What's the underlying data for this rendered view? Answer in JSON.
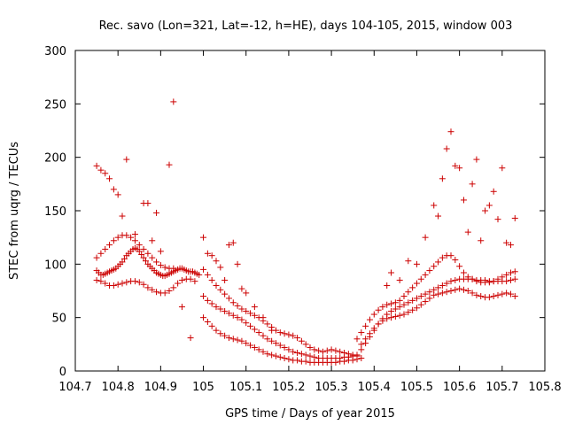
{
  "chart_data": {
    "type": "scatter",
    "title": "Rec. savo (Lon=321, Lat=-12, h=HE), days 104-105, 2015, window 003",
    "xlabel": "GPS time / Days of year 2015",
    "ylabel": "STEC from uqrg / TECUs",
    "xlim": [
      104.7,
      105.8
    ],
    "ylim": [
      0,
      300
    ],
    "x_ticks": [
      104.7,
      104.8,
      104.9,
      105.0,
      105.1,
      105.2,
      105.3,
      105.4,
      105.5,
      105.6,
      105.7,
      105.8
    ],
    "x_tick_labels": [
      "104.7",
      "104.8",
      "104.9",
      "105",
      "105.1",
      "105.2",
      "105.3",
      "105.4",
      "105.5",
      "105.6",
      "105.7",
      "105.8"
    ],
    "y_ticks": [
      0,
      50,
      100,
      150,
      200,
      250,
      300
    ],
    "y_tick_labels": [
      "0",
      "50",
      "100",
      "150",
      "200",
      "250",
      "300"
    ],
    "grid": false,
    "marker": "+",
    "marker_color": "#cc0000",
    "series": [
      {
        "x": [
          104.75,
          104.755,
          104.76,
          104.765,
          104.77,
          104.775,
          104.78,
          104.785,
          104.79,
          104.795,
          104.8,
          104.805,
          104.81,
          104.815,
          104.82,
          104.825,
          104.83,
          104.835,
          104.84,
          104.845,
          104.85,
          104.855,
          104.86,
          104.865,
          104.87,
          104.875,
          104.88,
          104.885,
          104.89,
          104.895,
          104.9,
          104.905,
          104.91,
          104.915,
          104.92,
          104.925,
          104.93,
          104.935,
          104.94,
          104.945,
          104.95,
          104.955,
          104.96,
          104.965,
          104.97,
          104.975,
          104.98,
          104.985,
          104.99
        ],
        "y": [
          94,
          92,
          90,
          90,
          91,
          92,
          93,
          94,
          95,
          96,
          98,
          100,
          102,
          105,
          108,
          110,
          112,
          114,
          115,
          114,
          112,
          109,
          106,
          103,
          100,
          98,
          96,
          94,
          92,
          91,
          90,
          89,
          89,
          90,
          91,
          92,
          93,
          94,
          95,
          96,
          96,
          95,
          94,
          93,
          93,
          93,
          92,
          91,
          90
        ]
      },
      {
        "x": [
          104.75,
          104.76,
          104.77,
          104.78,
          104.79,
          104.8,
          104.81,
          104.82,
          104.83,
          104.84,
          104.85,
          104.86,
          104.87,
          104.88,
          104.89,
          104.9,
          104.91,
          104.92,
          104.93,
          104.94,
          104.95,
          104.96,
          104.97,
          104.98
        ],
        "y": [
          85,
          84,
          82,
          80,
          80,
          81,
          82,
          83,
          84,
          84,
          83,
          81,
          78,
          76,
          74,
          73,
          73,
          75,
          78,
          82,
          85,
          86,
          86,
          84
        ]
      },
      {
        "x": [
          104.75,
          104.76,
          104.77,
          104.78,
          104.79,
          104.8,
          104.81,
          104.82,
          104.83,
          104.84,
          104.85,
          104.86,
          104.87,
          104.88,
          104.89,
          104.9,
          104.91,
          104.92,
          104.93
        ],
        "y": [
          106,
          110,
          114,
          118,
          122,
          125,
          127,
          127,
          125,
          122,
          118,
          114,
          110,
          106,
          102,
          99,
          97,
          96,
          96
        ]
      },
      {
        "x": [
          104.75,
          104.76,
          104.77,
          104.78,
          104.79,
          104.8,
          104.81,
          104.82,
          104.84,
          104.86,
          104.87,
          104.88,
          104.89,
          104.9,
          104.92,
          104.93,
          104.95,
          104.97
        ],
        "y": [
          192,
          188,
          185,
          180,
          170,
          165,
          145,
          198,
          128,
          157,
          157,
          122,
          148,
          112,
          193,
          252,
          60,
          31
        ]
      },
      {
        "x": [
          105.0,
          105.01,
          105.02,
          105.03,
          105.04,
          105.05,
          105.06,
          105.07,
          105.08,
          105.09,
          105.1,
          105.11,
          105.12,
          105.13,
          105.14,
          105.15,
          105.16,
          105.17,
          105.18,
          105.19,
          105.2,
          105.21,
          105.22,
          105.23,
          105.24,
          105.25,
          105.26,
          105.27,
          105.28,
          105.29,
          105.3,
          105.31,
          105.32,
          105.33,
          105.34,
          105.35,
          105.36
        ],
        "y": [
          95,
          90,
          85,
          80,
          76,
          72,
          68,
          64,
          61,
          58,
          56,
          54,
          52,
          50,
          47,
          44,
          41,
          38,
          36,
          35,
          34,
          33,
          31,
          28,
          25,
          22,
          20,
          19,
          18,
          19,
          20,
          19,
          18,
          17,
          16,
          15,
          14
        ]
      },
      {
        "x": [
          105.0,
          105.01,
          105.02,
          105.03,
          105.04,
          105.05,
          105.06,
          105.07,
          105.08,
          105.09,
          105.1,
          105.11,
          105.12,
          105.13,
          105.14,
          105.15,
          105.16,
          105.17,
          105.18,
          105.19,
          105.2,
          105.21,
          105.22,
          105.23,
          105.24,
          105.25,
          105.26,
          105.27,
          105.28,
          105.29,
          105.3,
          105.31,
          105.32,
          105.33,
          105.34,
          105.35,
          105.36,
          105.37
        ],
        "y": [
          50,
          46,
          42,
          38,
          35,
          33,
          31,
          30,
          29,
          28,
          26,
          24,
          22,
          20,
          18,
          16,
          15,
          14,
          13,
          12,
          11,
          10,
          10,
          9,
          9,
          8,
          8,
          8,
          8,
          8,
          8,
          8,
          9,
          9,
          10,
          10,
          11,
          12
        ]
      },
      {
        "x": [
          105.0,
          105.01,
          105.02,
          105.03,
          105.04,
          105.05,
          105.06,
          105.07,
          105.08,
          105.09,
          105.1,
          105.11,
          105.12,
          105.13,
          105.14,
          105.15,
          105.16,
          105.17,
          105.18,
          105.19,
          105.2,
          105.21,
          105.22,
          105.23,
          105.24,
          105.25,
          105.26,
          105.27,
          105.28,
          105.29,
          105.3,
          105.31,
          105.32,
          105.33,
          105.34,
          105.35
        ],
        "y": [
          70,
          66,
          63,
          60,
          58,
          56,
          54,
          52,
          50,
          48,
          45,
          42,
          39,
          36,
          33,
          30,
          28,
          26,
          24,
          22,
          20,
          18,
          17,
          16,
          15,
          14,
          13,
          12,
          12,
          12,
          12,
          12,
          12,
          13,
          13,
          14
        ]
      },
      {
        "x": [
          105.0,
          105.01,
          105.02,
          105.03,
          105.04,
          105.05,
          105.06,
          105.07,
          105.08,
          105.09,
          105.1,
          105.12,
          105.14,
          105.16
        ],
        "y": [
          125,
          110,
          108,
          103,
          97,
          85,
          118,
          120,
          100,
          77,
          73,
          60,
          50,
          38
        ]
      },
      {
        "x": [
          105.36,
          105.37,
          105.38,
          105.39,
          105.4,
          105.41,
          105.42,
          105.43,
          105.44,
          105.45,
          105.46,
          105.47,
          105.48,
          105.49,
          105.5,
          105.51,
          105.52,
          105.53,
          105.54,
          105.55,
          105.56,
          105.57,
          105.58,
          105.59,
          105.6,
          105.61,
          105.62,
          105.63,
          105.64,
          105.65,
          105.66,
          105.67,
          105.68,
          105.69,
          105.7,
          105.71,
          105.72,
          105.73
        ],
        "y": [
          15,
          20,
          26,
          32,
          38,
          44,
          49,
          53,
          56,
          58,
          60,
          62,
          64,
          66,
          68,
          70,
          72,
          74,
          76,
          78,
          80,
          82,
          84,
          85,
          86,
          86,
          86,
          86,
          85,
          85,
          85,
          84,
          84,
          84,
          84,
          84,
          85,
          86
        ]
      },
      {
        "x": [
          105.36,
          105.37,
          105.38,
          105.39,
          105.4,
          105.41,
          105.42,
          105.43,
          105.44,
          105.45,
          105.46,
          105.47,
          105.48,
          105.49,
          105.5,
          105.51,
          105.52,
          105.53,
          105.54,
          105.55,
          105.56,
          105.57,
          105.58,
          105.59,
          105.6,
          105.61,
          105.62,
          105.63,
          105.64,
          105.65,
          105.66,
          105.67,
          105.68,
          105.69,
          105.7,
          105.71,
          105.72,
          105.73
        ],
        "y": [
          30,
          36,
          42,
          48,
          53,
          57,
          60,
          62,
          63,
          64,
          66,
          70,
          74,
          78,
          82,
          86,
          90,
          94,
          98,
          102,
          106,
          108,
          108,
          104,
          98,
          92,
          88,
          86,
          84,
          83,
          83,
          83,
          84,
          86,
          88,
          90,
          92,
          93
        ]
      },
      {
        "x": [
          105.37,
          105.38,
          105.39,
          105.4,
          105.41,
          105.42,
          105.43,
          105.44,
          105.45,
          105.46,
          105.47,
          105.48,
          105.49,
          105.5,
          105.51,
          105.52,
          105.53,
          105.54,
          105.55,
          105.56,
          105.57,
          105.58,
          105.59,
          105.6,
          105.61,
          105.62,
          105.63,
          105.64,
          105.65,
          105.66,
          105.67,
          105.68,
          105.69,
          105.7,
          105.71,
          105.72,
          105.73
        ],
        "y": [
          25,
          30,
          35,
          40,
          44,
          47,
          49,
          50,
          51,
          52,
          53,
          55,
          57,
          59,
          62,
          65,
          68,
          71,
          72,
          73,
          74,
          75,
          76,
          77,
          76,
          75,
          73,
          71,
          70,
          69,
          69,
          70,
          71,
          72,
          73,
          72,
          70
        ]
      },
      {
        "x": [
          105.43,
          105.44,
          105.46,
          105.48,
          105.5,
          105.52,
          105.54,
          105.55,
          105.56,
          105.57,
          105.58,
          105.59,
          105.6,
          105.61,
          105.62,
          105.63,
          105.64,
          105.65,
          105.66,
          105.67,
          105.68,
          105.69,
          105.7,
          105.71,
          105.72,
          105.73
        ],
        "y": [
          80,
          92,
          85,
          103,
          100,
          125,
          155,
          145,
          180,
          208,
          224,
          192,
          190,
          160,
          130,
          175,
          198,
          122,
          150,
          155,
          168,
          142,
          190,
          120,
          118,
          143
        ]
      }
    ]
  }
}
